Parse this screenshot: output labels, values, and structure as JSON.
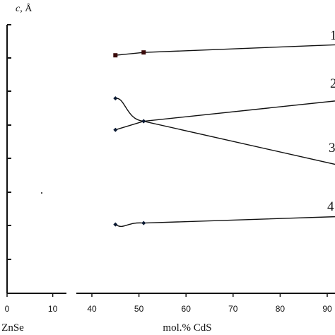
{
  "chart_data": {
    "type": "line",
    "ylabel_prefix": "c",
    "ylabel_unit": ", Å",
    "left_panel": {
      "x_ticks": [
        0,
        10
      ],
      "xlabel": "ZnSe",
      "xlim": [
        0,
        13
      ]
    },
    "right_panel": {
      "x_ticks": [
        40,
        50,
        60,
        70,
        80,
        90
      ],
      "xlabel": "mol.% CdS",
      "xlim": [
        37,
        93
      ]
    },
    "series": [
      {
        "name": "1",
        "marker": "square",
        "color": "#3a0a0a",
        "points": [
          [
            45,
            8.3
          ],
          [
            51,
            8.4
          ]
        ],
        "end": [
          97,
          8.7
        ]
      },
      {
        "name": "2",
        "marker": "diamond",
        "color": "#0c1a33",
        "points": [
          [
            45,
            5.7
          ],
          [
            51,
            6.0
          ]
        ],
        "end": [
          97,
          6.8
        ]
      },
      {
        "name": "3",
        "marker": "diamond",
        "color": "#0c1a33",
        "points": [
          [
            45,
            6.8
          ],
          [
            51,
            6.0
          ]
        ],
        "end": [
          97,
          4.3
        ]
      },
      {
        "name": "4",
        "marker": "diamond",
        "color": "#0c1a33",
        "points": [
          [
            45,
            2.4
          ],
          [
            51,
            2.45
          ]
        ],
        "end": [
          97,
          2.7
        ]
      }
    ],
    "ylim": [
      0,
      8.7
    ]
  }
}
